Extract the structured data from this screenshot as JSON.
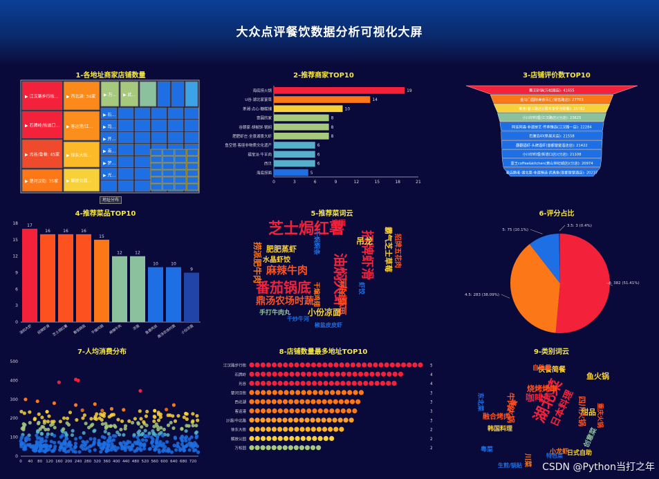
{
  "page": {
    "title": "大众点评餐饮数据分析可视化大屏",
    "watermark": "CSDN @Python当打之年"
  },
  "colors": {
    "red": "#f3213a",
    "orange": "#fc7717",
    "orangeRed": "#fd5220",
    "yellow": "#f8d13a",
    "green": "#a7c97d",
    "sage": "#8cc19e",
    "blue": "#1d6fe3",
    "navy": "#2044a8",
    "lightBlue": "#3ca4e6"
  },
  "chart_data": [
    {
      "id": "treemap",
      "type": "treemap",
      "title": "1-各地址商家店铺数量",
      "button_label": "地址分布",
      "items": [
        {
          "label": "江汉路步行街...",
          "color": "#f3213a"
        },
        {
          "label": "石牌岭/街道口...",
          "color": "#f3213a"
        },
        {
          "label": "光谷/鲁巷: 45家",
          "color": "#f04a2c"
        },
        {
          "label": "楚河汉街: 35家",
          "color": "#fc7717"
        },
        {
          "label": "西北湖: 34家",
          "color": "#fc8a1b"
        },
        {
          "label": "客运港/江...",
          "color": "#fc8f1b"
        },
        {
          "label": "沙湖/中北...",
          "color": "#fdae25"
        },
        {
          "label": "徐东大街...",
          "color": "#fdba28"
        },
        {
          "label": "解放公园...",
          "color": "#f8d13a"
        },
        {
          "label": "万...",
          "color": "#a7c97d"
        },
        {
          "label": "武...",
          "color": "#a7c97d"
        },
        {
          "label": "",
          "color": "#8cc19e"
        },
        {
          "label": "",
          "color": "#1d6fe3"
        },
        {
          "label": "",
          "color": "#1d6fe3"
        },
        {
          "label": "",
          "color": "#3ca4e6"
        }
      ]
    },
    {
      "id": "top_merchants",
      "type": "bar",
      "orientation": "horizontal",
      "title": "2-推荐商家TOP10",
      "categories": [
        "海底捞火锅",
        "U谷·湖北家宴菜",
        "茶湘·点心·糖糕铺",
        "壹圆的家",
        "谷朝家·胡椒饼·锅焖",
        "肥肥虾庄·全景湖景大虾",
        "鱼空馆·客座非物质文化遗产",
        "福宝派·牛羊肉",
        "西贝",
        "海底捞面"
      ],
      "values": [
        19,
        14,
        10,
        8,
        8,
        8,
        6,
        6,
        6,
        5
      ],
      "colors": [
        "#f3213a",
        "#fc7717",
        "#f8d13a",
        "#a7c97d",
        "#a7c97d",
        "#a7c97d",
        "#57b0c9",
        "#57b0c9",
        "#57b0c9",
        "#1d6fe3"
      ],
      "xlim": [
        0,
        21
      ],
      "xticks": [
        "0",
        "3",
        "6",
        "9",
        "12",
        "15",
        "18",
        "21"
      ]
    },
    {
      "id": "review_funnel",
      "type": "funnel",
      "title": "3-店铺评价数TOP10",
      "labels": [
        "霸王砂锅(万松园店): 41655",
        "金马门国际美食百汇(销售路店): 27703",
        "莱克(首义路店)(周末享受自助餐): 25782",
        "小川印料理(江汉路店)(分店): 23625",
        "阿佳阿森·非遗技艺·传承臻选(江汉路一店): 22284",
        "巴厘岛印(新吴天店): 21558",
        "翻翻酒虾·头牌酒虾(首都楚楚酒店店): 21422",
        "小川印料理(街道口店)(分店): 21108",
        "壹王coffee&kitchen(黄山世纪城店)(分店): 20974",
        "老店鹅老·湖北菜·非遗臻选·武昌鱼(首都楚楚酒店): 20237"
      ],
      "values": [
        41655,
        27703,
        25782,
        23625,
        22284,
        21558,
        21422,
        21108,
        20974,
        20237
      ],
      "colors": [
        "#f3213a",
        "#fc7717",
        "#f8d13a",
        "#8cc19e",
        "#1d6fe3",
        "#1d6fe3",
        "#1d6fe3",
        "#1d6fe3",
        "#1d6fe3",
        "#1d6fe3"
      ]
    },
    {
      "id": "top_dishes",
      "type": "bar",
      "title": "4-推荐菜品TOP10",
      "categories": [
        "油焖大虾",
        "招牌虾滑",
        "芝士焗红薯",
        "番茄锅底",
        "干煸鸡翅",
        "麻辣牛肉",
        "凉面",
        "鱼香肉丝",
        "鼎汤农场时蔬",
        "小份凉面"
      ],
      "values": [
        17,
        16,
        16,
        16,
        15,
        12,
        12,
        10,
        10,
        9
      ],
      "colors": [
        "#f3213a",
        "#fd5220",
        "#fd5220",
        "#fd5220",
        "#fc7717",
        "#8cc19e",
        "#8cc19e",
        "#1d6fe3",
        "#1d6fe3",
        "#2044a8"
      ],
      "ylim": [
        0,
        18
      ],
      "yticks": [
        "0",
        "3",
        "6",
        "9",
        "12",
        "15",
        "18"
      ]
    },
    {
      "id": "dish_wordcloud",
      "type": "wordcloud",
      "title": "5-推荐菜词云",
      "words": [
        {
          "text": "芝士焗红薯",
          "color": "#f3213a"
        },
        {
          "text": "油焖大虾",
          "color": "#f3213a"
        },
        {
          "text": "番茄锅底",
          "color": "#f3213a"
        },
        {
          "text": "麻辣牛肉",
          "color": "#fd5220"
        },
        {
          "text": "招牌虾滑",
          "color": "#f3213a"
        },
        {
          "text": "鼎汤农场时蔬",
          "color": "#fd5220"
        },
        {
          "text": "鱼香肉丝",
          "color": "#fd5220"
        },
        {
          "text": "小份凉面",
          "color": "#f8d13a"
        },
        {
          "text": "肥肥蒸虾",
          "color": "#f8d13a"
        },
        {
          "text": "水晶虾饺",
          "color": "#f8d13a"
        },
        {
          "text": "捞派肥牛肉",
          "color": "#fc7717"
        },
        {
          "text": "手打牛肉丸",
          "color": "#8cc19e"
        },
        {
          "text": "干煸鸡翅",
          "color": "#fc7717"
        },
        {
          "text": "霸气芝士草莓",
          "color": "#f8d13a"
        },
        {
          "text": "吊龙",
          "color": "#f8d13a"
        },
        {
          "text": "凉面",
          "color": "#f3213a"
        },
        {
          "text": "千焖焖条",
          "color": "#1d6fe3"
        },
        {
          "text": "椒盐皮皮虾",
          "color": "#1d6fe3"
        },
        {
          "text": "招牌五花肉",
          "color": "#fd5220"
        },
        {
          "text": "虾饺",
          "color": "#1d6fe3"
        },
        {
          "text": "干炒牛河",
          "color": "#1d6fe3"
        }
      ]
    },
    {
      "id": "rating_pie",
      "type": "pie",
      "title": "6-评分占比",
      "labels": [
        "4",
        "4.5",
        "5",
        "3.5"
      ],
      "values": [
        382,
        283,
        75,
        3
      ],
      "label_texts": [
        "4: 382 (51.41%)",
        "4.5: 283 (38.09%)",
        "5: 75 (10.1%)",
        "3.5: 3 (0.4%)"
      ],
      "colors": [
        "#f3213a",
        "#fc7717",
        "#1d6fe3",
        "#2044a8"
      ]
    },
    {
      "id": "price_scatter",
      "type": "scatter",
      "title": "7-人均消费分布",
      "xlim": [
        0,
        743
      ],
      "ylim": [
        0,
        500
      ],
      "xticks": [
        "0",
        "40",
        "80",
        "120",
        "160",
        "200",
        "240",
        "280",
        "320",
        "360",
        "400",
        "440",
        "480",
        "520",
        "560",
        "600",
        "640",
        "680",
        "720"
      ],
      "yticks": [
        "0",
        "100",
        "200",
        "300",
        "400",
        "500"
      ],
      "highlights": [
        [
          160,
          390
        ],
        [
          230,
          405
        ],
        [
          240,
          400
        ],
        [
          500,
          345
        ],
        [
          20,
          300
        ],
        [
          70,
          290
        ],
        [
          140,
          280
        ],
        [
          310,
          275
        ],
        [
          640,
          270
        ],
        [
          230,
          270
        ],
        [
          380,
          250
        ],
        [
          430,
          245
        ],
        [
          560,
          240
        ],
        [
          690,
          225
        ],
        [
          110,
          235
        ]
      ]
    },
    {
      "id": "address_pictorial",
      "type": "pictorialbar",
      "title": "8-店铺数量最多地址TOP10",
      "categories": [
        "江汉路步行街",
        "石牌岭",
        "光谷",
        "楚河汉街",
        "西北湖",
        "客运港",
        "沙湖/中北路",
        "徐东大街",
        "解放公园",
        "万松园"
      ],
      "values": [
        53,
        47,
        45,
        35,
        34,
        33,
        32,
        29,
        26,
        22
      ],
      "colors": [
        "#f3213a",
        "#f3213a",
        "#f3213a",
        "#fc7717",
        "#fc7717",
        "#fc7717",
        "#fc9c2a",
        "#fdb42a",
        "#f8d13a",
        "#a7c97d"
      ]
    },
    {
      "id": "category_wordcloud",
      "type": "wordcloud",
      "title": "9-类别词云",
      "words": [
        {
          "text": "湖北菜",
          "color": "#f3213a"
        },
        {
          "text": "咖啡厅",
          "color": "#f3213a"
        },
        {
          "text": "日本料理",
          "color": "#f3213a"
        },
        {
          "text": "烧烤烤串",
          "color": "#fd5220"
        },
        {
          "text": "鱼火锅",
          "color": "#f8d13a"
        },
        {
          "text": "甜品",
          "color": "#f8d13a"
        },
        {
          "text": "快餐简餐",
          "color": "#f8d13a"
        },
        {
          "text": "韩国料理",
          "color": "#f8d13a"
        },
        {
          "text": "融合烤肉",
          "color": "#fd5220"
        },
        {
          "text": "自助餐",
          "color": "#fd5220"
        },
        {
          "text": "西餐",
          "color": "#fd5220"
        },
        {
          "text": "创意菜",
          "color": "#8cc19e"
        },
        {
          "text": "日式自助",
          "color": "#f8d13a"
        },
        {
          "text": "四川火锅",
          "color": "#fd5220"
        },
        {
          "text": "牛肉火锅",
          "color": "#fd5220"
        },
        {
          "text": "川菜",
          "color": "#fc7717"
        },
        {
          "text": "小龙虾",
          "color": "#fc7717"
        },
        {
          "text": "重庆火锅",
          "color": "#fd5220"
        },
        {
          "text": "粤菜",
          "color": "#1d6fe3"
        },
        {
          "text": "特色菜",
          "color": "#1d6fe3"
        },
        {
          "text": "东北菜",
          "color": "#1d6fe3"
        },
        {
          "text": "生煎/锅贴",
          "color": "#1d6fe3"
        }
      ]
    }
  ]
}
